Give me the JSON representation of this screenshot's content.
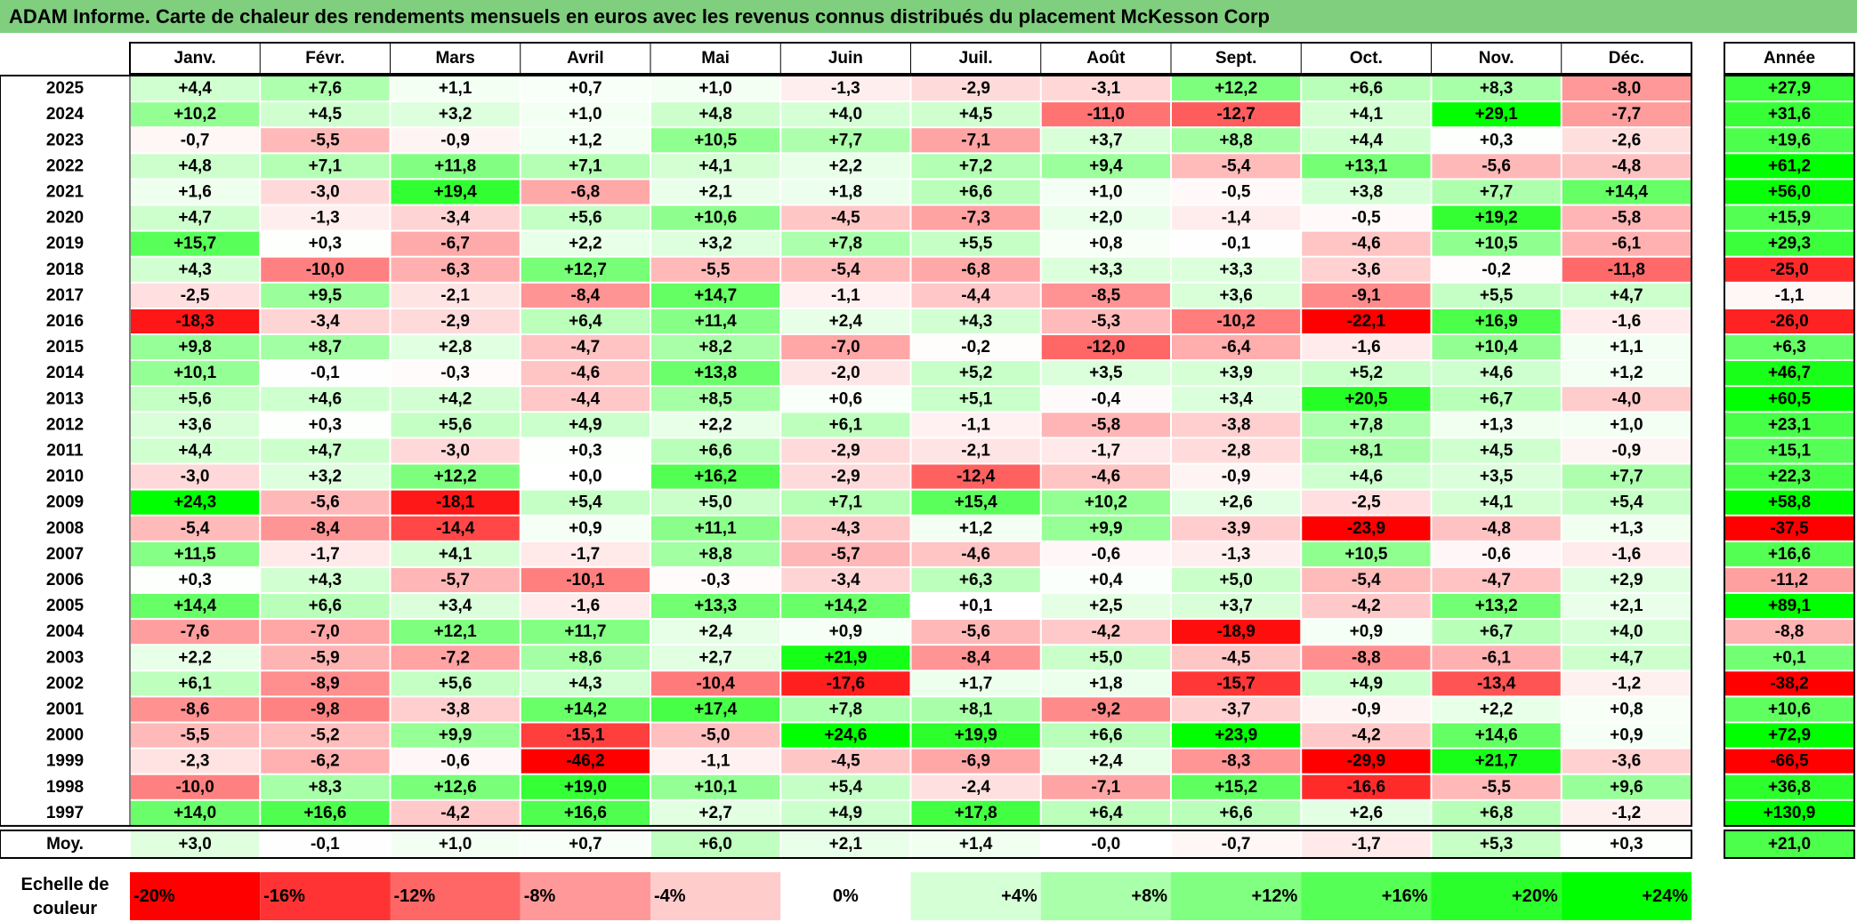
{
  "title": "ADAM Informe. Carte de chaleur des rendements mensuels en euros avec les revenus connus distribués du placement McKesson Corp",
  "colors": {
    "title_bg": "#7fcf7f",
    "max_green": "#00ff00",
    "max_red": "#ff0000",
    "neutral": "#ffffff"
  },
  "chart_data": {
    "type": "heatmap",
    "months": [
      "Janv.",
      "Févr.",
      "Mars",
      "Avril",
      "Mai",
      "Juin",
      "Juil.",
      "Août",
      "Sept.",
      "Oct.",
      "Nov.",
      "Déc."
    ],
    "year_header": "Année",
    "rows": [
      {
        "year": "2025",
        "values": [
          "+4,4",
          "+7,6",
          "+1,1",
          "+0,7",
          "+1,0",
          "-1,3",
          "-2,9",
          "-3,1",
          "+12,2",
          "+6,6",
          "+8,3",
          "-8,0"
        ],
        "annual": "+27,9"
      },
      {
        "year": "2024",
        "values": [
          "+10,2",
          "+4,5",
          "+3,2",
          "+1,0",
          "+4,8",
          "+4,0",
          "+4,5",
          "-11,0",
          "-12,7",
          "+4,1",
          "+29,1",
          "-7,7"
        ],
        "annual": "+31,6"
      },
      {
        "year": "2023",
        "values": [
          "-0,7",
          "-5,5",
          "-0,9",
          "+1,2",
          "+10,5",
          "+7,7",
          "-7,1",
          "+3,7",
          "+8,8",
          "+4,4",
          "+0,3",
          "-2,6"
        ],
        "annual": "+19,6"
      },
      {
        "year": "2022",
        "values": [
          "+4,8",
          "+7,1",
          "+11,8",
          "+7,1",
          "+4,1",
          "+2,2",
          "+7,2",
          "+9,4",
          "-5,4",
          "+13,1",
          "-5,6",
          "-4,8"
        ],
        "annual": "+61,2"
      },
      {
        "year": "2021",
        "values": [
          "+1,6",
          "-3,0",
          "+19,4",
          "-6,8",
          "+2,1",
          "+1,8",
          "+6,6",
          "+1,0",
          "-0,5",
          "+3,8",
          "+7,7",
          "+14,4"
        ],
        "annual": "+56,0"
      },
      {
        "year": "2020",
        "values": [
          "+4,7",
          "-1,3",
          "-3,4",
          "+5,6",
          "+10,6",
          "-4,5",
          "-7,3",
          "+2,0",
          "-1,4",
          "-0,5",
          "+19,2",
          "-5,8"
        ],
        "annual": "+15,9"
      },
      {
        "year": "2019",
        "values": [
          "+15,7",
          "+0,3",
          "-6,7",
          "+2,2",
          "+3,2",
          "+7,8",
          "+5,5",
          "+0,8",
          "-0,1",
          "-4,6",
          "+10,5",
          "-6,1"
        ],
        "annual": "+29,3"
      },
      {
        "year": "2018",
        "values": [
          "+4,3",
          "-10,0",
          "-6,3",
          "+12,7",
          "-5,5",
          "-5,4",
          "-6,8",
          "+3,3",
          "+3,3",
          "-3,6",
          "-0,2",
          "-11,8"
        ],
        "annual": "-25,0"
      },
      {
        "year": "2017",
        "values": [
          "-2,5",
          "+9,5",
          "-2,1",
          "-8,4",
          "+14,7",
          "-1,1",
          "-4,4",
          "-8,5",
          "+3,6",
          "-9,1",
          "+5,5",
          "+4,7"
        ],
        "annual": "-1,1"
      },
      {
        "year": "2016",
        "values": [
          "-18,3",
          "-3,4",
          "-2,9",
          "+6,4",
          "+11,4",
          "+2,4",
          "+4,3",
          "-5,3",
          "-10,2",
          "-22,1",
          "+16,9",
          "-1,6"
        ],
        "annual": "-26,0"
      },
      {
        "year": "2015",
        "values": [
          "+9,8",
          "+8,7",
          "+2,8",
          "-4,7",
          "+8,2",
          "-7,0",
          "-0,2",
          "-12,0",
          "-6,4",
          "-1,6",
          "+10,4",
          "+1,1"
        ],
        "annual": "+6,3"
      },
      {
        "year": "2014",
        "values": [
          "+10,1",
          "-0,1",
          "-0,3",
          "-4,6",
          "+13,8",
          "-2,0",
          "+5,2",
          "+3,5",
          "+3,9",
          "+5,2",
          "+4,6",
          "+1,2"
        ],
        "annual": "+46,7"
      },
      {
        "year": "2013",
        "values": [
          "+5,6",
          "+4,6",
          "+4,2",
          "-4,4",
          "+8,5",
          "+0,6",
          "+5,1",
          "-0,4",
          "+3,4",
          "+20,5",
          "+6,7",
          "-4,0"
        ],
        "annual": "+60,5"
      },
      {
        "year": "2012",
        "values": [
          "+3,6",
          "+0,3",
          "+5,6",
          "+4,9",
          "+2,2",
          "+6,1",
          "-1,1",
          "-5,8",
          "-3,8",
          "+7,8",
          "+1,3",
          "+1,0"
        ],
        "annual": "+23,1"
      },
      {
        "year": "2011",
        "values": [
          "+4,4",
          "+4,7",
          "-3,0",
          "+0,3",
          "+6,6",
          "-2,9",
          "-2,1",
          "-1,7",
          "-2,8",
          "+8,1",
          "+4,5",
          "-0,9"
        ],
        "annual": "+15,1"
      },
      {
        "year": "2010",
        "values": [
          "-3,0",
          "+3,2",
          "+12,2",
          "+0,0",
          "+16,2",
          "-2,9",
          "-12,4",
          "-4,6",
          "-0,9",
          "+4,6",
          "+3,5",
          "+7,7"
        ],
        "annual": "+22,3"
      },
      {
        "year": "2009",
        "values": [
          "+24,3",
          "-5,6",
          "-18,1",
          "+5,4",
          "+5,0",
          "+7,1",
          "+15,4",
          "+10,2",
          "+2,6",
          "-2,5",
          "+4,1",
          "+5,4"
        ],
        "annual": "+58,8"
      },
      {
        "year": "2008",
        "values": [
          "-5,4",
          "-8,4",
          "-14,4",
          "+0,9",
          "+11,1",
          "-4,3",
          "+1,2",
          "+9,9",
          "-3,9",
          "-23,9",
          "-4,8",
          "+1,3"
        ],
        "annual": "-37,5"
      },
      {
        "year": "2007",
        "values": [
          "+11,5",
          "-1,7",
          "+4,1",
          "-1,7",
          "+8,8",
          "-5,7",
          "-4,6",
          "-0,6",
          "-1,3",
          "+10,5",
          "-0,6",
          "-1,6"
        ],
        "annual": "+16,6"
      },
      {
        "year": "2006",
        "values": [
          "+0,3",
          "+4,3",
          "-5,7",
          "-10,1",
          "-0,3",
          "-3,4",
          "+6,3",
          "+0,4",
          "+5,0",
          "-5,4",
          "-4,7",
          "+2,9"
        ],
        "annual": "-11,2"
      },
      {
        "year": "2005",
        "values": [
          "+14,4",
          "+6,6",
          "+3,4",
          "-1,6",
          "+13,3",
          "+14,2",
          "+0,1",
          "+2,5",
          "+3,7",
          "-4,2",
          "+13,2",
          "+2,1"
        ],
        "annual": "+89,1"
      },
      {
        "year": "2004",
        "values": [
          "-7,6",
          "-7,0",
          "+12,1",
          "+11,7",
          "+2,4",
          "+0,9",
          "-5,6",
          "-4,2",
          "-18,9",
          "+0,9",
          "+6,7",
          "+4,0"
        ],
        "annual": "-8,8"
      },
      {
        "year": "2003",
        "values": [
          "+2,2",
          "-5,9",
          "-7,2",
          "+8,6",
          "+2,7",
          "+21,9",
          "-8,4",
          "+5,0",
          "-4,5",
          "-8,8",
          "-6,1",
          "+4,7"
        ],
        "annual": "+0,1"
      },
      {
        "year": "2002",
        "values": [
          "+6,1",
          "-8,9",
          "+5,6",
          "+4,3",
          "-10,4",
          "-17,6",
          "+1,7",
          "+1,8",
          "-15,7",
          "+4,9",
          "-13,4",
          "-1,2"
        ],
        "annual": "-38,2"
      },
      {
        "year": "2001",
        "values": [
          "-8,6",
          "-9,8",
          "-3,8",
          "+14,2",
          "+17,4",
          "+7,8",
          "+8,1",
          "-9,2",
          "-3,7",
          "-0,9",
          "+2,2",
          "+0,8"
        ],
        "annual": "+10,6"
      },
      {
        "year": "2000",
        "values": [
          "-5,5",
          "-5,2",
          "+9,9",
          "-15,1",
          "-5,0",
          "+24,6",
          "+19,9",
          "+6,6",
          "+23,9",
          "-4,2",
          "+14,6",
          "+0,9"
        ],
        "annual": "+72,9"
      },
      {
        "year": "1999",
        "values": [
          "-2,3",
          "-6,2",
          "-0,6",
          "-46,2",
          "-1,1",
          "-4,5",
          "-6,9",
          "+2,4",
          "-8,3",
          "-29,9",
          "+21,7",
          "-3,6"
        ],
        "annual": "-66,5"
      },
      {
        "year": "1998",
        "values": [
          "-10,0",
          "+8,3",
          "+12,6",
          "+19,0",
          "+10,1",
          "+5,4",
          "-2,4",
          "-7,1",
          "+15,2",
          "-16,6",
          "-5,5",
          "+9,6"
        ],
        "annual": "+36,8"
      },
      {
        "year": "1997",
        "values": [
          "+14,0",
          "+16,6",
          "-4,2",
          "+16,6",
          "+2,7",
          "+4,9",
          "+17,8",
          "+6,4",
          "+6,6",
          "+2,6",
          "+6,8",
          "-1,2"
        ],
        "annual": "+130,9"
      }
    ],
    "average": {
      "label": "Moy.",
      "values": [
        "+3,0",
        "-0,1",
        "+1,0",
        "+0,7",
        "+6,0",
        "+2,1",
        "+1,4",
        "-0,0",
        "-0,7",
        "-1,7",
        "+5,3",
        "+0,3"
      ],
      "annual": "+21,0"
    },
    "scale": {
      "label": "Echelle de couleur",
      "items": [
        "-20%",
        "-16%",
        "-12%",
        "-8%",
        "-4%",
        "0%",
        "+4%",
        "+8%",
        "+12%",
        "+16%",
        "+20%",
        "+24%"
      ],
      "values": [
        -20,
        -16,
        -12,
        -8,
        -4,
        0,
        4,
        8,
        12,
        16,
        20,
        24
      ]
    }
  }
}
